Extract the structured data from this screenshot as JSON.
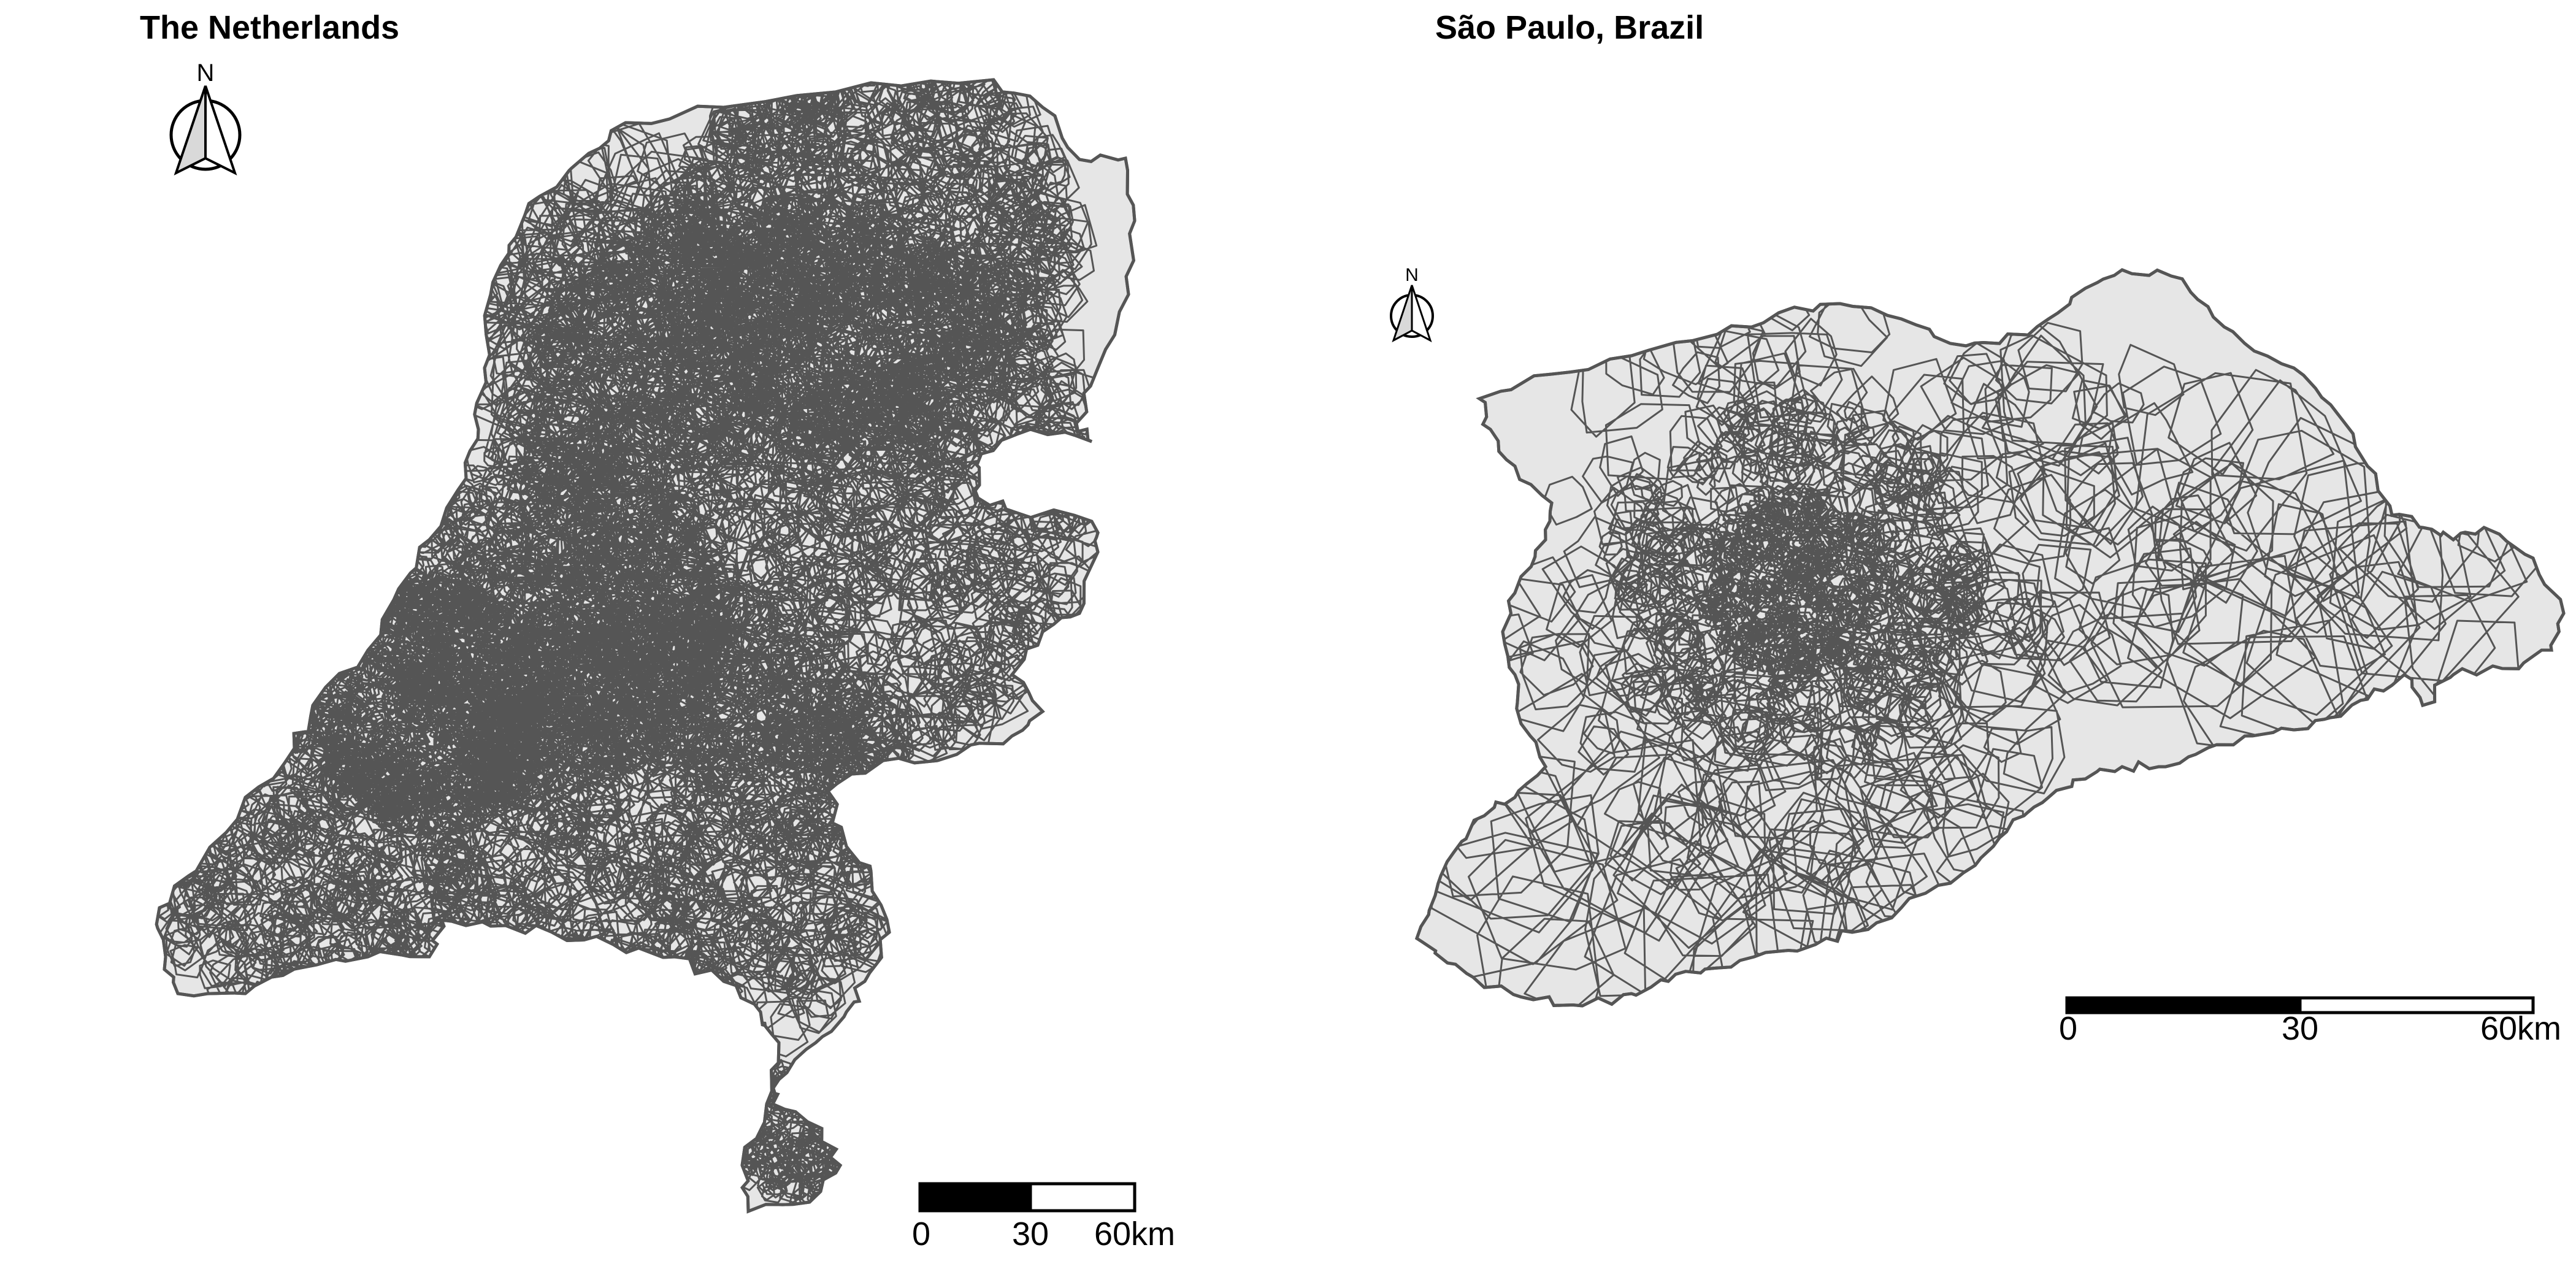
{
  "maps": [
    {
      "title": "The Netherlands",
      "north_label": "N",
      "scale_labels": [
        "0",
        "30",
        "60km"
      ],
      "fill_color": "#e6e6e6",
      "border_color": "#555555"
    },
    {
      "title": "São Paulo, Brazil",
      "north_label": "N",
      "scale_labels": [
        "0",
        "30",
        "60km"
      ],
      "fill_color": "#e6e6e6",
      "border_color": "#555555"
    }
  ],
  "icons": {
    "north_arrow": "north-arrow-icon"
  }
}
